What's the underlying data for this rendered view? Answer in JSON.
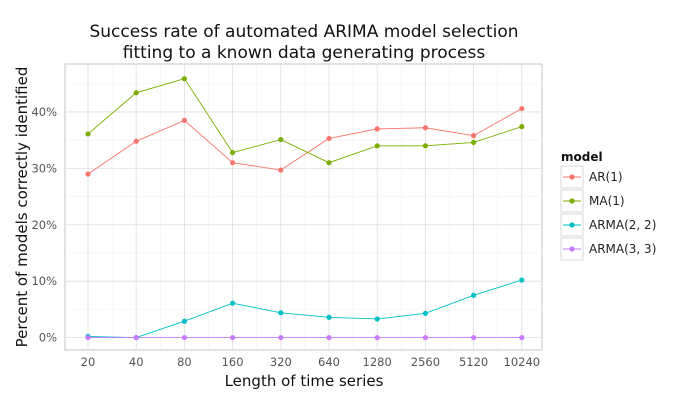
{
  "chart_data": {
    "type": "line",
    "title": [
      "Success rate of automated ARIMA model selection",
      "fitting to a known data generating process"
    ],
    "xlabel": "Length of time series",
    "ylabel": "Percent of models correctly identified",
    "categories": [
      "20",
      "40",
      "80",
      "160",
      "320",
      "640",
      "1280",
      "2560",
      "5120",
      "10240"
    ],
    "y_ticks": [
      0,
      10,
      20,
      30,
      40
    ],
    "y_tick_labels": [
      "0%",
      "10%",
      "20%",
      "30%",
      "40%"
    ],
    "ylim": [
      -2.2,
      48.5
    ],
    "grid": true,
    "legend": {
      "title": "model",
      "position": "right"
    },
    "series": [
      {
        "name": "AR(1)",
        "color": "#F8766D",
        "values": [
          29.0,
          34.8,
          38.5,
          31.0,
          29.7,
          35.3,
          37.0,
          37.2,
          35.8,
          40.6
        ]
      },
      {
        "name": "MA(1)",
        "color": "#7CAE00",
        "values": [
          36.1,
          43.4,
          45.9,
          32.8,
          35.1,
          31.0,
          34.0,
          34.0,
          34.6,
          37.4
        ]
      },
      {
        "name": "ARMA(2, 2)",
        "color": "#00BFC4",
        "values": [
          0.2,
          0.0,
          2.9,
          6.1,
          4.4,
          3.6,
          3.3,
          4.3,
          7.5,
          10.2
        ]
      },
      {
        "name": "ARMA(3, 3)",
        "color": "#C77CFF",
        "values": [
          0,
          0,
          0,
          0,
          0,
          0,
          0,
          0,
          0,
          0
        ]
      }
    ]
  }
}
